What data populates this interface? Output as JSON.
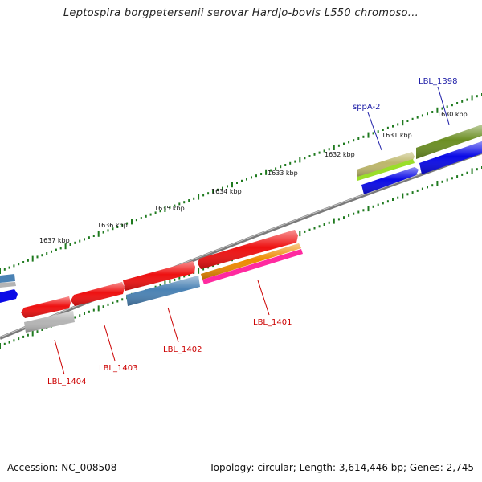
{
  "title": "Leptospira borgpetersenii serovar Hardjo-bovis L550 chromoso...",
  "accession": "Accession: NC_008508",
  "summary": "Topology: circular; Length: 3,614,446 bp; Genes: 2,745",
  "ruler_labels": [
    "1630 kbp",
    "1631 kbp",
    "1632 kbp",
    "1633 kbp",
    "1634 kbp",
    "1635 kbp",
    "1636 kbp",
    "1637 kbp"
  ],
  "gene_labels": {
    "lbl_1398": "LBL_1398",
    "sppa_2": "sppA-2",
    "lbl_1401": "LBL_1401",
    "lbl_1402": "LBL_1402",
    "lbl_1403": "LBL_1403",
    "lbl_1404": "LBL_1404"
  },
  "colors": {
    "backbone": "#7a7a7a",
    "tick": "#1f7a1f",
    "red": "#ee1111",
    "blue": "#0a0ae6",
    "steelblue": "#4a82b4",
    "olive": "#6b8e23",
    "khaki": "#bdb76b",
    "lime": "#9ade2a",
    "orange": "#ee8a00",
    "pink": "#ff2aa0",
    "gray": "#b4b4b4",
    "label_blue": "#1a1aa6",
    "label_red": "#cc0000"
  }
}
